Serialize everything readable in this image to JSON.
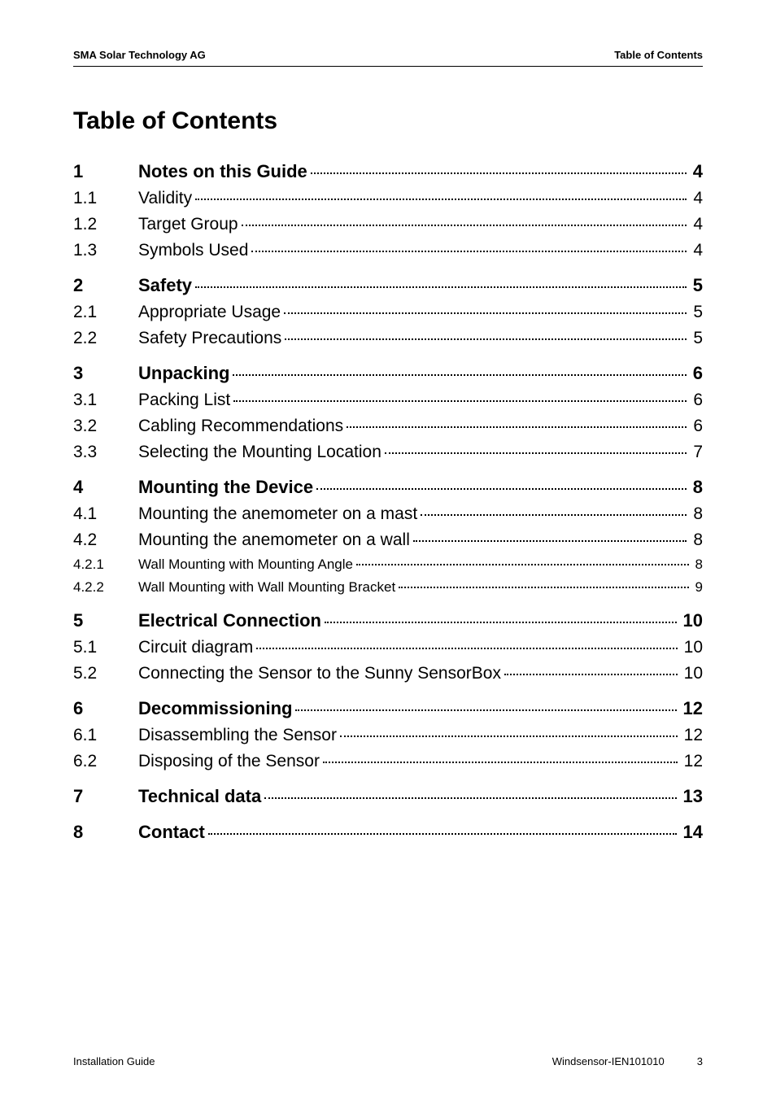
{
  "header": {
    "left": "SMA Solar Technology AG",
    "right": "Table of Contents"
  },
  "title": "Table of Contents",
  "entries": [
    {
      "level": 0,
      "num": "1",
      "label": "Notes on this Guide",
      "page": "4"
    },
    {
      "level": 1,
      "num": "1.1",
      "label": "Validity",
      "page": "4"
    },
    {
      "level": 1,
      "num": "1.2",
      "label": "Target Group",
      "page": "4"
    },
    {
      "level": 1,
      "num": "1.3",
      "label": "Symbols Used",
      "page": "4"
    },
    {
      "level": 0,
      "num": "2",
      "label": "Safety",
      "page": "5"
    },
    {
      "level": 1,
      "num": "2.1",
      "label": "Appropriate Usage",
      "page": "5"
    },
    {
      "level": 1,
      "num": "2.2",
      "label": "Safety Precautions",
      "page": "5"
    },
    {
      "level": 0,
      "num": "3",
      "label": "Unpacking",
      "page": "6"
    },
    {
      "level": 1,
      "num": "3.1",
      "label": "Packing List",
      "page": "6"
    },
    {
      "level": 1,
      "num": "3.2",
      "label": "Cabling Recommendations",
      "page": "6"
    },
    {
      "level": 1,
      "num": "3.3",
      "label": "Selecting the Mounting Location",
      "page": "7"
    },
    {
      "level": 0,
      "num": "4",
      "label": "Mounting the Device",
      "page": "8"
    },
    {
      "level": 1,
      "num": "4.1",
      "label": "Mounting the anemometer on a mast",
      "page": "8"
    },
    {
      "level": 1,
      "num": "4.2",
      "label": "Mounting the anemometer on a wall",
      "page": "8"
    },
    {
      "level": 2,
      "num": "4.2.1",
      "label": "Wall Mounting with Mounting Angle",
      "page": "8"
    },
    {
      "level": 2,
      "num": "4.2.2",
      "label": "Wall Mounting with Wall Mounting Bracket",
      "page": "9"
    },
    {
      "level": 0,
      "num": "5",
      "label": "Electrical Connection",
      "page": "10"
    },
    {
      "level": 1,
      "num": "5.1",
      "label": "Circuit diagram",
      "page": "10"
    },
    {
      "level": 1,
      "num": "5.2",
      "label": "Connecting the Sensor to the Sunny SensorBox",
      "page": "10"
    },
    {
      "level": 0,
      "num": "6",
      "label": "Decommissioning",
      "page": "12"
    },
    {
      "level": 1,
      "num": "6.1",
      "label": "Disassembling the Sensor",
      "page": "12"
    },
    {
      "level": 1,
      "num": "6.2",
      "label": "Disposing of the Sensor",
      "page": "12"
    },
    {
      "level": 0,
      "num": "7",
      "label": "Technical data",
      "page": "13"
    },
    {
      "level": 0,
      "num": "8",
      "label": "Contact",
      "page": "14"
    }
  ],
  "footer": {
    "left": "Installation Guide",
    "doc": "Windsensor-IEN101010",
    "page": "3"
  }
}
